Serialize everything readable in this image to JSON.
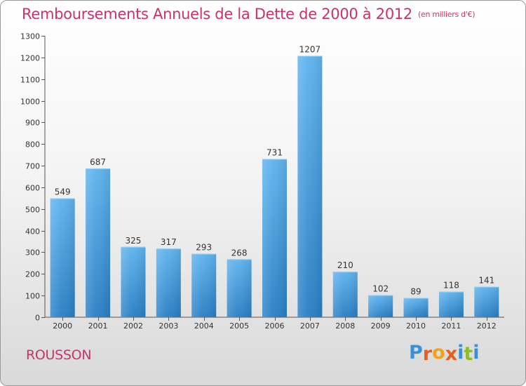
{
  "header": {
    "title": "Remboursements Annuels de la Dette de 2000 à 2012",
    "unit": "(en milliers d'€)"
  },
  "footer": {
    "commune": "ROUSSON",
    "logo_text": "Proxiti"
  },
  "colors": {
    "title": "#c8336b",
    "bar_top": "#5fb3ee",
    "bar_bottom": "#2a7fc4",
    "logo": [
      "#3a8fd6",
      "#e5601f",
      "#f0a21c",
      "#e5601f",
      "#3a8fd6",
      "#8cbf2a",
      "#3a8fd6"
    ]
  },
  "chart_data": {
    "type": "bar",
    "categories": [
      "2000",
      "2001",
      "2002",
      "2003",
      "2004",
      "2005",
      "2006",
      "2007",
      "2008",
      "2009",
      "2010",
      "2011",
      "2012"
    ],
    "values": [
      549,
      687,
      325,
      317,
      293,
      268,
      731,
      1207,
      210,
      102,
      89,
      118,
      141
    ],
    "ylim": [
      0,
      1300
    ],
    "yticks": [
      0,
      100,
      200,
      300,
      400,
      500,
      600,
      700,
      800,
      900,
      1000,
      1100,
      1200,
      1300
    ],
    "grid": false,
    "data_labels": true
  }
}
